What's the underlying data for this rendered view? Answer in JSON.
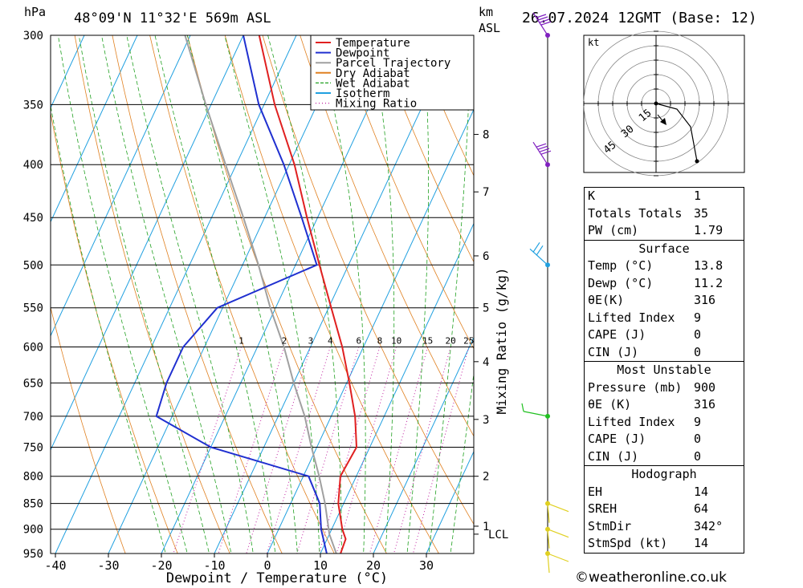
{
  "header": {
    "pressure_unit": "hPa",
    "location": "48°09'N 11°32'E 569m ASL",
    "km_label": "km",
    "asl_label": "ASL",
    "datetime": "26.07.2024 12GMT (Base: 12)"
  },
  "chart_data": {
    "type": "skew-t",
    "xlabel": "Dewpoint / Temperature (°C)",
    "ylabel": "hPa",
    "secondary_ylabel": "Mixing Ratio (g/kg)",
    "x_ticks": [
      -40,
      -30,
      -20,
      -10,
      0,
      10,
      20,
      30
    ],
    "pressure_levels": [
      300,
      350,
      400,
      450,
      500,
      550,
      600,
      650,
      700,
      750,
      800,
      850,
      900,
      950
    ],
    "height_km_ticks": [
      {
        "km": "1",
        "p": 894
      },
      {
        "km": "2",
        "p": 800
      },
      {
        "km": "3",
        "p": 705
      },
      {
        "km": "4",
        "p": 620
      },
      {
        "km": "5",
        "p": 550
      },
      {
        "km": "6",
        "p": 490
      },
      {
        "km": "7",
        "p": 425
      },
      {
        "km": "8",
        "p": 374
      }
    ],
    "lcl_label": "LCL",
    "lcl_pressure": 910,
    "mixing_ratio_labels": [
      "1",
      "2",
      "3",
      "4",
      "6",
      "8",
      "10",
      "15",
      "20",
      "25"
    ],
    "mixing_ratio_values": [
      1,
      2,
      3,
      4,
      6,
      8,
      10,
      15,
      20,
      25
    ],
    "legend": [
      {
        "name": "Temperature",
        "color": "#e02020",
        "style": "solid"
      },
      {
        "name": "Dewpoint",
        "color": "#2030d0",
        "style": "solid"
      },
      {
        "name": "Parcel Trajectory",
        "color": "#a0a0a0",
        "style": "solid"
      },
      {
        "name": "Dry Adiabat",
        "color": "#e08020",
        "style": "solid"
      },
      {
        "name": "Wet Adiabat",
        "color": "#20a020",
        "style": "dashed"
      },
      {
        "name": "Isotherm",
        "color": "#20a0e0",
        "style": "solid"
      },
      {
        "name": "Mixing Ratio",
        "color": "#c020a0",
        "style": "dotted"
      }
    ],
    "temperature": [
      {
        "p": 950,
        "t": 13.8
      },
      {
        "p": 920,
        "t": 13.5
      },
      {
        "p": 900,
        "t": 12.0
      },
      {
        "p": 850,
        "t": 9.0
      },
      {
        "p": 800,
        "t": 7.0
      },
      {
        "p": 750,
        "t": 7.5
      },
      {
        "p": 700,
        "t": 4.5
      },
      {
        "p": 650,
        "t": 0.5
      },
      {
        "p": 600,
        "t": -4.0
      },
      {
        "p": 550,
        "t": -9.5
      },
      {
        "p": 500,
        "t": -15.5
      },
      {
        "p": 450,
        "t": -22.0
      },
      {
        "p": 400,
        "t": -29.0
      },
      {
        "p": 350,
        "t": -38.0
      },
      {
        "p": 300,
        "t": -47.0
      }
    ],
    "dewpoint": [
      {
        "p": 950,
        "t": 11.2
      },
      {
        "p": 900,
        "t": 8.0
      },
      {
        "p": 850,
        "t": 5.5
      },
      {
        "p": 800,
        "t": 1.0
      },
      {
        "p": 750,
        "t": -20.0
      },
      {
        "p": 700,
        "t": -33.0
      },
      {
        "p": 650,
        "t": -34.0
      },
      {
        "p": 600,
        "t": -34.0
      },
      {
        "p": 550,
        "t": -31.0
      },
      {
        "p": 500,
        "t": -16.0
      },
      {
        "p": 450,
        "t": -23.0
      },
      {
        "p": 400,
        "t": -31.0
      },
      {
        "p": 350,
        "t": -41.0
      },
      {
        "p": 300,
        "t": -50.0
      }
    ],
    "parcel": [
      {
        "p": 950,
        "t": 13.0
      },
      {
        "p": 910,
        "t": 10.0
      },
      {
        "p": 850,
        "t": 6.5
      },
      {
        "p": 800,
        "t": 3.0
      },
      {
        "p": 750,
        "t": -1.0
      },
      {
        "p": 700,
        "t": -5.0
      },
      {
        "p": 650,
        "t": -10.0
      },
      {
        "p": 600,
        "t": -15.0
      },
      {
        "p": 550,
        "t": -21.0
      },
      {
        "p": 500,
        "t": -27.0
      },
      {
        "p": 450,
        "t": -34.0
      },
      {
        "p": 400,
        "t": -42.0
      },
      {
        "p": 350,
        "t": -51.0
      },
      {
        "p": 300,
        "t": -61.0
      }
    ],
    "wind_barbs": [
      {
        "p": 300,
        "color": "#8020c0"
      },
      {
        "p": 400,
        "color": "#8020c0"
      },
      {
        "p": 500,
        "color": "#20a0e0"
      },
      {
        "p": 700,
        "color": "#20c020"
      },
      {
        "p": 850,
        "color": "#e0d020"
      },
      {
        "p": 900,
        "color": "#e0d020"
      },
      {
        "p": 950,
        "color": "#e0d020"
      }
    ]
  },
  "hodograph": {
    "unit": "kt",
    "ring_labels": [
      "15",
      "30",
      "45"
    ]
  },
  "indices": {
    "general": [
      {
        "label": "K",
        "value": "1"
      },
      {
        "label": "Totals Totals",
        "value": "35"
      },
      {
        "label": "PW (cm)",
        "value": "1.79"
      }
    ],
    "surface": {
      "title": "Surface",
      "rows": [
        {
          "label": "Temp (°C)",
          "value": "13.8"
        },
        {
          "label": "Dewp (°C)",
          "value": "11.2"
        },
        {
          "label": "θE(K)",
          "value": "316"
        },
        {
          "label": "Lifted Index",
          "value": "9"
        },
        {
          "label": "CAPE (J)",
          "value": "0"
        },
        {
          "label": "CIN (J)",
          "value": "0"
        }
      ]
    },
    "most_unstable": {
      "title": "Most Unstable",
      "rows": [
        {
          "label": "Pressure (mb)",
          "value": "900"
        },
        {
          "label": "θE (K)",
          "value": "316"
        },
        {
          "label": "Lifted Index",
          "value": "9"
        },
        {
          "label": "CAPE (J)",
          "value": "0"
        },
        {
          "label": "CIN (J)",
          "value": "0"
        }
      ]
    },
    "hodograph": {
      "title": "Hodograph",
      "rows": [
        {
          "label": "EH",
          "value": "14"
        },
        {
          "label": "SREH",
          "value": "64"
        },
        {
          "label": "StmDir",
          "value": "342°"
        },
        {
          "label": "StmSpd (kt)",
          "value": "14"
        }
      ]
    }
  },
  "credit": "©weatheronline.co.uk"
}
